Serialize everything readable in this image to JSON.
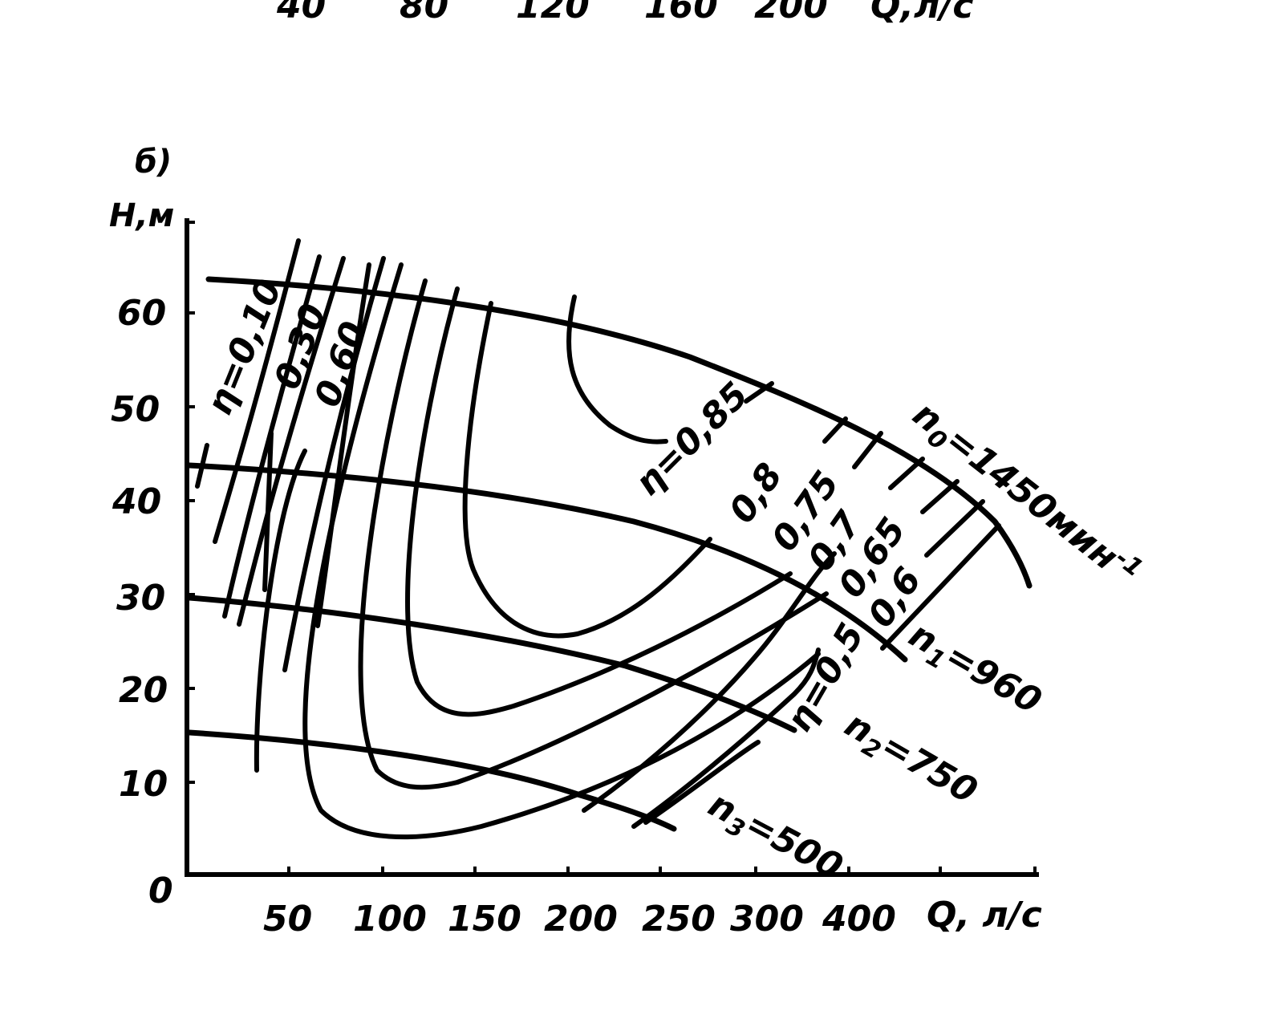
{
  "chart_data": {
    "type": "line",
    "panel_label": "б)",
    "top_axis_fragment": {
      "ticks": [
        "40",
        "80",
        "120",
        "160",
        "200"
      ],
      "unit": "Q,л/с"
    },
    "xlabel": "Q, л/с",
    "ylabel": "Н,м",
    "origin_label": "0",
    "x_ticks": [
      "50",
      "100",
      "150",
      "200",
      "250",
      "300",
      "400"
    ],
    "y_ticks": [
      "10",
      "20",
      "30",
      "40",
      "50",
      "60"
    ],
    "ylim": [
      0,
      70
    ],
    "grid": false,
    "series": [
      {
        "name": "n0=1450мин-1",
        "label_main": "n",
        "label_sub": "0",
        "label_rest": "=1450мин",
        "label_sup": "-1",
        "x": [
          0,
          100,
          150,
          200,
          250,
          300,
          400,
          500
        ],
        "y": [
          64,
          61,
          60,
          58,
          55,
          51,
          44,
          30
        ]
      },
      {
        "name": "n1=960",
        "label_main": "n",
        "label_sub": "1",
        "label_rest": "=960",
        "x": [
          0,
          100,
          150,
          200,
          250,
          300,
          400
        ],
        "y": [
          44,
          43,
          41,
          39,
          35,
          30,
          23
        ]
      },
      {
        "name": "n2=750",
        "label_main": "n",
        "label_sub": "2",
        "label_rest": "=750",
        "x": [
          0,
          100,
          150,
          200,
          250,
          300,
          360
        ],
        "y": [
          30,
          29,
          27,
          25,
          22,
          17,
          15
        ]
      },
      {
        "name": "n3=500",
        "label_main": "n",
        "label_sub": "3",
        "label_rest": "=500",
        "x": [
          0,
          100,
          150,
          200,
          250
        ],
        "y": [
          15,
          13,
          11,
          8,
          5
        ]
      }
    ],
    "efficiency_labels": [
      {
        "text": "η=0,10"
      },
      {
        "text": "0,30"
      },
      {
        "text": "0,60"
      },
      {
        "text": "η=0,85"
      },
      {
        "text": "0,8"
      },
      {
        "text": "0,75"
      },
      {
        "text": "0,7"
      },
      {
        "text": "0,65"
      },
      {
        "text": "0,6"
      },
      {
        "text": "η=0,5"
      }
    ]
  }
}
